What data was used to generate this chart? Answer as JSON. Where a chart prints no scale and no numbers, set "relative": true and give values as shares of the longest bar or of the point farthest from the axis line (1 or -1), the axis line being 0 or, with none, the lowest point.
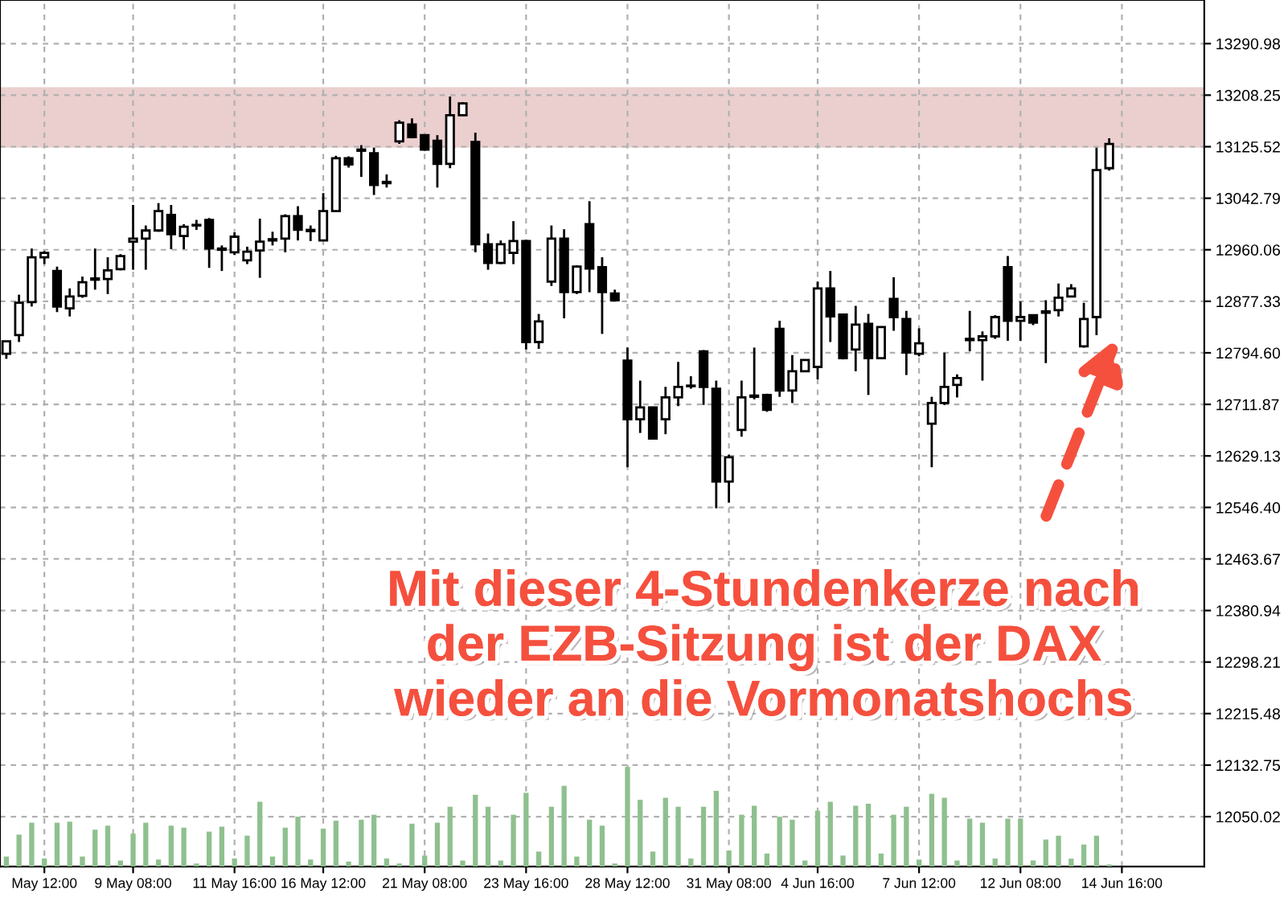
{
  "chart_data": [
    {
      "type": "candlestick",
      "categories": [
        null,
        null,
        null,
        "May 12:00",
        null,
        null,
        null,
        null,
        null,
        null,
        "9 May 08:00",
        null,
        null,
        null,
        null,
        null,
        null,
        null,
        "11 May 16:00",
        null,
        null,
        null,
        null,
        null,
        null,
        "16 May 12:00",
        null,
        null,
        null,
        null,
        null,
        null,
        null,
        "21 May 08:00",
        null,
        null,
        null,
        null,
        null,
        null,
        null,
        "23 May 16:00",
        null,
        null,
        null,
        null,
        null,
        null,
        null,
        "28 May 12:00",
        null,
        null,
        null,
        null,
        null,
        null,
        null,
        "31 May 08:00",
        null,
        null,
        null,
        null,
        null,
        null,
        "4 Jun 16:00",
        null,
        null,
        null,
        null,
        null,
        null,
        null,
        "7 Jun 12:00",
        null,
        null,
        null,
        null,
        null,
        null,
        null,
        "12 Jun 08:00",
        null,
        null,
        null,
        null,
        null,
        null,
        null,
        "14 Jun 16:00",
        null,
        null,
        null,
        null,
        null,
        null
      ],
      "ohlc": [
        [
          12793,
          12814,
          12785,
          12813
        ],
        [
          12823,
          12888,
          12812,
          12875
        ],
        [
          12876,
          12962,
          12869,
          12948
        ],
        [
          12948,
          12958,
          12937,
          12955
        ],
        [
          12926,
          12933,
          12860,
          12869
        ],
        [
          12866,
          12898,
          12853,
          12885
        ],
        [
          12886,
          12917,
          12883,
          12908
        ],
        [
          12912,
          12962,
          12896,
          12914
        ],
        [
          12913,
          12948,
          12889,
          12927
        ],
        [
          12929,
          12953,
          12927,
          12950
        ],
        [
          12973,
          13032,
          12928,
          12978
        ],
        [
          12978,
          12999,
          12928,
          12991
        ],
        [
          12991,
          13035,
          12989,
          13022
        ],
        [
          13016,
          13032,
          12961,
          12985
        ],
        [
          12982,
          13001,
          12961,
          12997
        ],
        [
          12999,
          13008,
          12992,
          13000
        ],
        [
          13008,
          13011,
          12931,
          12962
        ],
        [
          12962,
          12967,
          12926,
          12960
        ],
        [
          12956,
          12988,
          12952,
          12981
        ],
        [
          12943,
          12965,
          12937,
          12957
        ],
        [
          12959,
          13010,
          12915,
          12973
        ],
        [
          12975,
          12989,
          12967,
          12977
        ],
        [
          12978,
          13017,
          12956,
          13014
        ],
        [
          13014,
          13030,
          12975,
          12992
        ],
        [
          12992,
          12999,
          12974,
          12990
        ],
        [
          12975,
          13051,
          12974,
          13022
        ],
        [
          13022,
          13111,
          13021,
          13107
        ],
        [
          13107,
          13110,
          13092,
          13097
        ],
        [
          13119,
          13128,
          13077,
          13121
        ],
        [
          13115,
          13124,
          13048,
          13064
        ],
        [
          13069,
          13081,
          13060,
          13067
        ],
        [
          13134,
          13168,
          13130,
          13164
        ],
        [
          13161,
          13171,
          13139,
          13141
        ],
        [
          13144,
          13145,
          13119,
          13121
        ],
        [
          13135,
          13144,
          13060,
          13098
        ],
        [
          13098,
          13206,
          13091,
          13176
        ],
        [
          13176,
          13197,
          13175,
          13195
        ],
        [
          13133,
          13148,
          12956,
          12969
        ],
        [
          12969,
          12986,
          12928,
          12939
        ],
        [
          12939,
          12975,
          12937,
          12969
        ],
        [
          12955,
          13006,
          12937,
          12974
        ],
        [
          12974,
          12976,
          12800,
          12812
        ],
        [
          12812,
          12857,
          12801,
          12845
        ],
        [
          12909,
          12999,
          12902,
          12978
        ],
        [
          12978,
          12993,
          12850,
          12892
        ],
        [
          12892,
          12935,
          12889,
          12933
        ],
        [
          13001,
          13038,
          12892,
          12930
        ],
        [
          12932,
          12948,
          12825,
          12892
        ],
        [
          12890,
          12896,
          12878,
          12879
        ],
        [
          12782,
          12803,
          12611,
          12688
        ],
        [
          12688,
          12750,
          12666,
          12707
        ],
        [
          12707,
          12708,
          12656,
          12657
        ],
        [
          12688,
          12740,
          12664,
          12723
        ],
        [
          12723,
          12780,
          12709,
          12740
        ],
        [
          12742,
          12757,
          12737,
          12741
        ],
        [
          12797,
          12799,
          12711,
          12740
        ],
        [
          12737,
          12750,
          12545,
          12588
        ],
        [
          12588,
          12631,
          12554,
          12627
        ],
        [
          12671,
          12750,
          12660,
          12723
        ],
        [
          12726,
          12803,
          12720,
          12724
        ],
        [
          12727,
          12729,
          12700,
          12703
        ],
        [
          12833,
          12846,
          12724,
          12734
        ],
        [
          12734,
          12791,
          12714,
          12765
        ],
        [
          12765,
          12784,
          12764,
          12783
        ],
        [
          12772,
          12909,
          12752,
          12898
        ],
        [
          12898,
          12926,
          12812,
          12853
        ],
        [
          12856,
          12857,
          12784,
          12786
        ],
        [
          12800,
          12870,
          12765,
          12840
        ],
        [
          12841,
          12857,
          12727,
          12786
        ],
        [
          12786,
          12836,
          12785,
          12836
        ],
        [
          12881,
          12916,
          12830,
          12852
        ],
        [
          12849,
          12862,
          12759,
          12795
        ],
        [
          12793,
          12834,
          12789,
          12810
        ],
        [
          12681,
          12724,
          12611,
          12714
        ],
        [
          12714,
          12795,
          12711,
          12740
        ],
        [
          12743,
          12760,
          12723,
          12754
        ],
        [
          12815,
          12862,
          12797,
          12817
        ],
        [
          12815,
          12829,
          12750,
          12821
        ],
        [
          12821,
          12855,
          12817,
          12852
        ],
        [
          12932,
          12950,
          12814,
          12846
        ],
        [
          12846,
          12877,
          12814,
          12852
        ],
        [
          12855,
          12855,
          12839,
          12843
        ],
        [
          12859,
          12879,
          12778,
          12861
        ],
        [
          12863,
          12906,
          12853,
          12883
        ],
        [
          12885,
          12905,
          12884,
          12898
        ],
        [
          12805,
          12875,
          12803,
          12849
        ],
        [
          12852,
          13124,
          12823,
          13088
        ],
        [
          13091,
          13139,
          13087,
          13130
        ],
        null,
        null,
        null,
        null,
        null,
        null,
        null
      ],
      "ylim": [
        11970,
        13361
      ],
      "yticks": [
        13290.98,
        13208.25,
        13125.52,
        13042.79,
        12960.06,
        12877.33,
        {
          "value": 12794.6,
          "label": "12794.60"
        },
        12711.87,
        12629.13,
        {
          "value": 12546.4,
          "label": "12546.40"
        },
        12463.67,
        12380.94,
        12298.21,
        12215.48,
        12132.75,
        12050.02
      ],
      "grid": true,
      "bands": [
        {
          "axis": "y",
          "from": 13124,
          "to": 13221,
          "color": "#ebcfcf"
        }
      ],
      "annotations": [
        "Mit dieser 4-Stundenkerze nach\nder EZB-Sitzung ist der DAX\nwieder an die Vormonatshochs"
      ]
    },
    {
      "type": "bar",
      "relative": true,
      "color": "#8fc08f",
      "categories": [
        null,
        null,
        null,
        null,
        null,
        null,
        null,
        null,
        null,
        null,
        null,
        null,
        null,
        null,
        null,
        null,
        null,
        null,
        null,
        null,
        null,
        null,
        null,
        null,
        null,
        null,
        null,
        null,
        null,
        null,
        null,
        null,
        null,
        null,
        null,
        null,
        null,
        null,
        null,
        null,
        null,
        null,
        null,
        null,
        null,
        null,
        null,
        null,
        null,
        null,
        null,
        null,
        null,
        null,
        null,
        null,
        null,
        null,
        null,
        null,
        null,
        null,
        null,
        null,
        null,
        null,
        null,
        null,
        null,
        null,
        null,
        null,
        null,
        null,
        null,
        null,
        null,
        null,
        null,
        null,
        null,
        null,
        null,
        null,
        null,
        null,
        null,
        null,
        null,
        null,
        null,
        null,
        null,
        null,
        null
      ],
      "values": [
        0.1,
        0.32,
        0.44,
        0.08,
        0.44,
        0.45,
        0.1,
        0.37,
        0.41,
        0.06,
        0.33,
        0.44,
        0.07,
        0.41,
        0.39,
        0.03,
        0.35,
        0.4,
        0.08,
        0.31,
        0.65,
        0.1,
        0.39,
        0.5,
        0.07,
        0.38,
        0.46,
        0.05,
        0.47,
        0.52,
        0.08,
        0.03,
        0.43,
        0.11,
        0.44,
        0.6,
        0.06,
        0.72,
        0.6,
        0.06,
        0.52,
        0.74,
        0.15,
        0.6,
        0.81,
        0.1,
        0.47,
        0.41,
        0.03,
        1,
        0.67,
        0.15,
        0.69,
        0.6,
        0.08,
        0.6,
        0.76,
        0.16,
        0.52,
        0.61,
        0.13,
        0.5,
        0.47,
        0.06,
        0.56,
        0.65,
        0.11,
        0.61,
        0.63,
        0.13,
        0.52,
        0.6,
        0.07,
        0.73,
        0.69,
        0.06,
        0.48,
        0.44,
        0.08,
        0.48,
        0.48,
        0.06,
        0.27,
        0.31,
        0.08,
        0.22,
        0.31,
        0.02,
        null,
        null,
        null,
        null,
        null,
        null,
        null
      ]
    }
  ]
}
